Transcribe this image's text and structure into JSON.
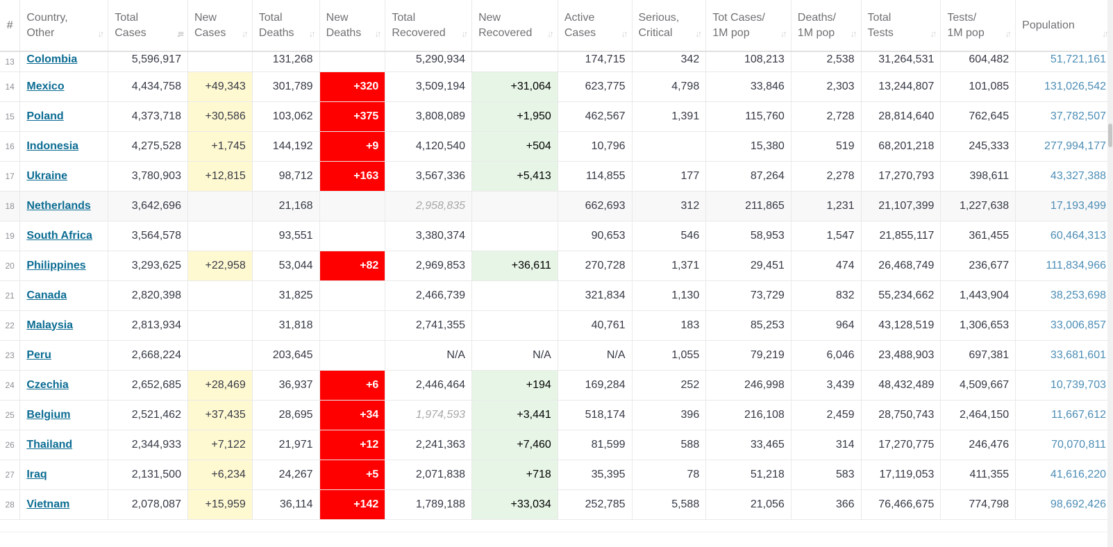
{
  "headers": [
    {
      "label": "#"
    },
    {
      "label": "Country,\nOther"
    },
    {
      "label": "Total\nCases"
    },
    {
      "label": "New\nCases"
    },
    {
      "label": "Total\nDeaths"
    },
    {
      "label": "New\nDeaths"
    },
    {
      "label": "Total\nRecovered"
    },
    {
      "label": "New\nRecovered"
    },
    {
      "label": "Active\nCases"
    },
    {
      "label": "Serious,\nCritical"
    },
    {
      "label": "Tot Cases/\n1M pop"
    },
    {
      "label": "Deaths/\n1M pop"
    },
    {
      "label": "Total\nTests"
    },
    {
      "label": "Tests/\n1M pop"
    },
    {
      "label": "Population"
    }
  ],
  "rows": [
    [
      "13",
      "Colombia",
      "5,596,917",
      "",
      "131,268",
      "",
      "5,290,934",
      "",
      "174,715",
      "342",
      "108,213",
      "2,538",
      "31,264,531",
      "604,482",
      "51,721,161"
    ],
    [
      "14",
      "Mexico",
      "4,434,758",
      "+49,343",
      "301,789",
      "+320",
      "3,509,194",
      "+31,064",
      "623,775",
      "4,798",
      "33,846",
      "2,303",
      "13,244,807",
      "101,085",
      "131,026,542"
    ],
    [
      "15",
      "Poland",
      "4,373,718",
      "+30,586",
      "103,062",
      "+375",
      "3,808,089",
      "+1,950",
      "462,567",
      "1,391",
      "115,760",
      "2,728",
      "28,814,640",
      "762,645",
      "37,782,507"
    ],
    [
      "16",
      "Indonesia",
      "4,275,528",
      "+1,745",
      "144,192",
      "+9",
      "4,120,540",
      "+504",
      "10,796",
      "",
      "15,380",
      "519",
      "68,201,218",
      "245,333",
      "277,994,177"
    ],
    [
      "17",
      "Ukraine",
      "3,780,903",
      "+12,815",
      "98,712",
      "+163",
      "3,567,336",
      "+5,413",
      "114,855",
      "177",
      "87,264",
      "2,278",
      "17,270,793",
      "398,611",
      "43,327,388"
    ],
    [
      "18",
      "Netherlands",
      "3,642,696",
      "",
      "21,168",
      "",
      "2,958,835",
      "",
      "662,693",
      "312",
      "211,865",
      "1,231",
      "21,107,399",
      "1,227,638",
      "17,193,499"
    ],
    [
      "19",
      "South Africa",
      "3,564,578",
      "",
      "93,551",
      "",
      "3,380,374",
      "",
      "90,653",
      "546",
      "58,953",
      "1,547",
      "21,855,117",
      "361,455",
      "60,464,313"
    ],
    [
      "20",
      "Philippines",
      "3,293,625",
      "+22,958",
      "53,044",
      "+82",
      "2,969,853",
      "+36,611",
      "270,728",
      "1,371",
      "29,451",
      "474",
      "26,468,749",
      "236,677",
      "111,834,966"
    ],
    [
      "21",
      "Canada",
      "2,820,398",
      "",
      "31,825",
      "",
      "2,466,739",
      "",
      "321,834",
      "1,130",
      "73,729",
      "832",
      "55,234,662",
      "1,443,904",
      "38,253,698"
    ],
    [
      "22",
      "Malaysia",
      "2,813,934",
      "",
      "31,818",
      "",
      "2,741,355",
      "",
      "40,761",
      "183",
      "85,253",
      "964",
      "43,128,519",
      "1,306,653",
      "33,006,857"
    ],
    [
      "23",
      "Peru",
      "2,668,224",
      "",
      "203,645",
      "",
      "N/A",
      "N/A",
      "N/A",
      "1,055",
      "79,219",
      "6,046",
      "23,488,903",
      "697,381",
      "33,681,601"
    ],
    [
      "24",
      "Czechia",
      "2,652,685",
      "+28,469",
      "36,937",
      "+6",
      "2,446,464",
      "+194",
      "169,284",
      "252",
      "246,998",
      "3,439",
      "48,432,489",
      "4,509,667",
      "10,739,703"
    ],
    [
      "25",
      "Belgium",
      "2,521,462",
      "+37,435",
      "28,695",
      "+34",
      "1,974,593",
      "+3,441",
      "518,174",
      "396",
      "216,108",
      "2,459",
      "28,750,743",
      "2,464,150",
      "11,667,612"
    ],
    [
      "26",
      "Thailand",
      "2,344,933",
      "+7,122",
      "21,971",
      "+12",
      "2,241,363",
      "+7,460",
      "81,599",
      "588",
      "33,465",
      "314",
      "17,270,775",
      "246,476",
      "70,070,811"
    ],
    [
      "27",
      "Iraq",
      "2,131,500",
      "+6,234",
      "24,267",
      "+5",
      "2,071,838",
      "+718",
      "35,395",
      "78",
      "51,218",
      "583",
      "17,119,053",
      "411,355",
      "41,616,220"
    ],
    [
      "28",
      "Vietnam",
      "2,078,087",
      "+15,959",
      "36,114",
      "+142",
      "1,789,188",
      "+33,034",
      "252,785",
      "5,588",
      "21,056",
      "366",
      "76,466,675",
      "774,798",
      "98,692,426"
    ]
  ],
  "italic_recovered_rows": [
    5,
    12
  ],
  "shaded_rows": [
    5
  ],
  "colors": {
    "new_cases_bg": "#fff9d1",
    "new_deaths_bg": "#ff0000",
    "new_recovered_bg": "#e7f5e6",
    "country_link": "#0b6c93",
    "population_text": "#4c8db5"
  }
}
